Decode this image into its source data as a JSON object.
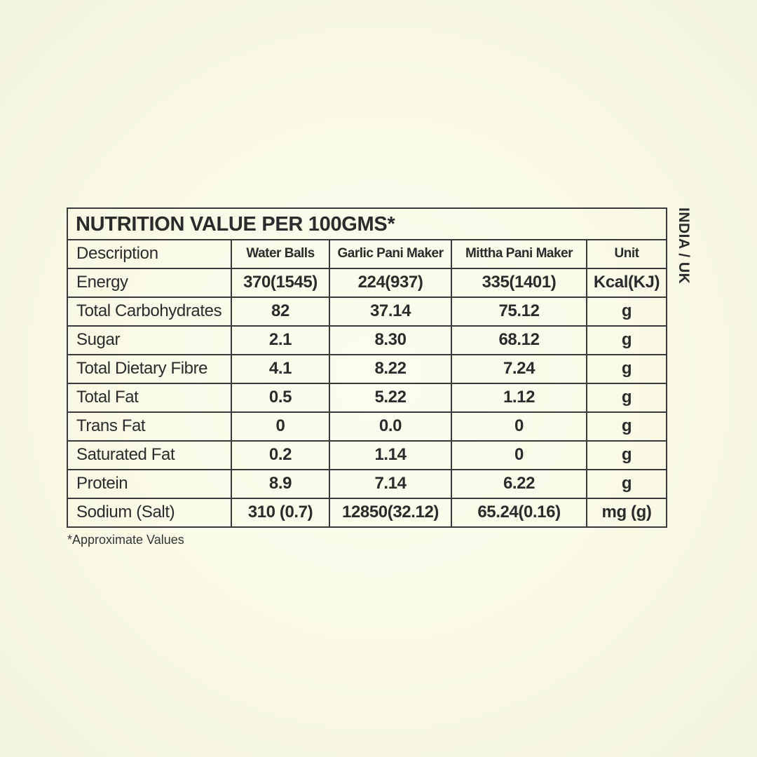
{
  "table": {
    "title": "NUTRITION VALUE PER 100GMS*",
    "headers": [
      "Description",
      "Water Balls",
      "Garlic Pani Maker",
      "Mittha Pani Maker",
      "Unit"
    ],
    "rows": [
      {
        "label": "Energy",
        "values": [
          "370(1545)",
          "224(937)",
          "335(1401)"
        ],
        "unit": "Kcal(KJ)"
      },
      {
        "label": "Total Carbohydrates",
        "values": [
          "82",
          "37.14",
          "75.12"
        ],
        "unit": "g"
      },
      {
        "label": "Sugar",
        "values": [
          "2.1",
          "8.30",
          "68.12"
        ],
        "unit": "g"
      },
      {
        "label": "Total Dietary Fibre",
        "values": [
          "4.1",
          "8.22",
          "7.24"
        ],
        "unit": "g"
      },
      {
        "label": "Total Fat",
        "values": [
          "0.5",
          "5.22",
          "1.12"
        ],
        "unit": "g"
      },
      {
        "label": "Trans Fat",
        "values": [
          "0",
          "0.0",
          "0"
        ],
        "unit": "g"
      },
      {
        "label": "Saturated Fat",
        "values": [
          "0.2",
          "1.14",
          "0"
        ],
        "unit": "g"
      },
      {
        "label": "Protein",
        "values": [
          "8.9",
          "7.14",
          "6.22"
        ],
        "unit": "g"
      },
      {
        "label": "Sodium (Salt)",
        "values": [
          "310 (0.7)",
          "12850(32.12)",
          "65.24(0.16)"
        ],
        "unit": "mg (g)"
      }
    ]
  },
  "region_label": "INDIA / UK",
  "footnote": "*Approximate Values",
  "colors": {
    "background": "#f9f9e6",
    "border": "#3a3a3a",
    "text": "#2b2b2b"
  }
}
